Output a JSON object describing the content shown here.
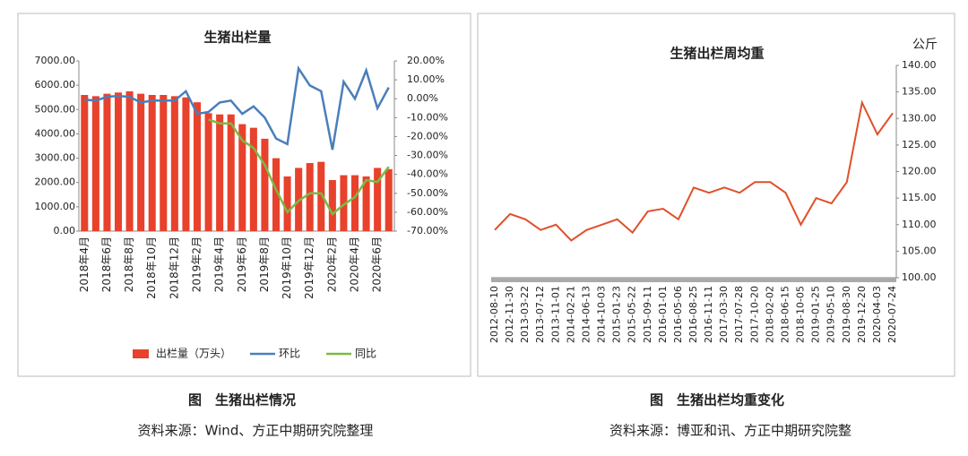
{
  "chart_data": [
    {
      "type": "bar",
      "title": "生猪出栏量",
      "categories": [
        "2018年4月",
        null,
        "2018年6月",
        null,
        "2018年8月",
        null,
        "2018年10月",
        null,
        "2018年12月",
        null,
        "2019年2月",
        null,
        "2019年4月",
        null,
        "2019年6月",
        null,
        "2019年8月",
        null,
        "2019年10月",
        null,
        "2019年12月",
        null,
        "2020年2月",
        null,
        "2020年4月",
        null,
        "2020年6月",
        null
      ],
      "series": [
        {
          "name": "出栏量（万头）",
          "type": "bar",
          "color": "#e8412c",
          "axis": "y",
          "values": [
            5600,
            5550,
            5650,
            5700,
            5750,
            5650,
            5600,
            5600,
            5550,
            5500,
            5300,
            4850,
            4800,
            4800,
            4400,
            4250,
            3800,
            3000,
            2250,
            2600,
            2800,
            2850,
            2100,
            2300,
            2300,
            2250,
            2600,
            2550
          ]
        },
        {
          "name": "环比",
          "type": "line",
          "color": "#4a7ebb",
          "axis": "y2",
          "values": [
            -0.5,
            -1,
            1,
            1.5,
            1,
            -2,
            -1,
            -1,
            -1,
            4,
            -8,
            -7,
            -2,
            -1,
            -8,
            -4,
            -10,
            -21,
            -24,
            16,
            7,
            4,
            -27,
            9,
            0,
            15,
            -5,
            6
          ]
        },
        {
          "name": "同比",
          "type": "line",
          "color": "#7cb944",
          "axis": "y2",
          "values": [
            null,
            null,
            null,
            null,
            null,
            null,
            null,
            null,
            null,
            null,
            null,
            -11,
            -13,
            -13,
            -22,
            -26,
            -35,
            -48,
            -60,
            -54,
            -50,
            -50,
            -61,
            -56,
            -52,
            -43,
            -44,
            -36
          ]
        }
      ],
      "ylim": [
        0,
        7000
      ],
      "yticks": [
        {
          "value": 0,
          "label": "0.00"
        },
        {
          "value": 1000,
          "label": "1000.00"
        },
        {
          "value": 2000,
          "label": "2000.00"
        },
        {
          "value": 3000,
          "label": "3000.00"
        },
        {
          "value": 4000,
          "label": "4000.00"
        },
        {
          "value": 5000,
          "label": "5000.00"
        },
        {
          "value": 6000,
          "label": "6000.00"
        },
        {
          "value": 7000,
          "label": "7000.00"
        }
      ],
      "y2lim": [
        -70,
        20
      ],
      "y2ticks": [
        {
          "value": -70,
          "label": "-70.00%"
        },
        {
          "value": -60,
          "label": "-60.00%"
        },
        {
          "value": -50,
          "label": "-50.00%"
        },
        {
          "value": -40,
          "label": "-40.00%"
        },
        {
          "value": -30,
          "label": "-30.00%"
        },
        {
          "value": -20,
          "label": "-20.00%"
        },
        {
          "value": -10,
          "label": "-10.00%"
        },
        {
          "value": 0,
          "label": "0.00%"
        },
        {
          "value": 10,
          "label": "10.00%"
        },
        {
          "value": 20,
          "label": "20.00%"
        }
      ],
      "legend": "bottom"
    },
    {
      "type": "line",
      "title": "生猪出栏周均重",
      "y_label": "公斤",
      "categories": [
        "2012-08-10",
        "2012-11-30",
        "2013-03-22",
        "2013-07-12",
        "2013-11-01",
        "2014-02-21",
        "2014-06-13",
        "2014-10-03",
        "2015-01-23",
        "2015-05-22",
        "2015-09-11",
        "2016-01-01",
        "2016-05-06",
        "2016-08-25",
        "2016-11-11",
        "2017-03-30",
        "2017-07-28",
        "2017-10-20",
        "2018-02-02",
        "2018-06-15",
        "2018-10-05",
        "2019-01-25",
        "2019-05-10",
        "2019-08-30",
        "2019-12-20",
        "2020-04-03",
        "2020-07-24"
      ],
      "series": [
        {
          "name": "生猪出栏周均重",
          "color": "#e0502a",
          "values": [
            109,
            112,
            111,
            109,
            110,
            107,
            109,
            110,
            111,
            108.5,
            112.5,
            113,
            111,
            117,
            116,
            117,
            116,
            118,
            118,
            116,
            110,
            115,
            114,
            118,
            133,
            127,
            131
          ]
        }
      ],
      "ylim": [
        100,
        140
      ],
      "yticks": [
        {
          "value": 100,
          "label": "100.00"
        },
        {
          "value": 105,
          "label": "105.00"
        },
        {
          "value": 110,
          "label": "110.00"
        },
        {
          "value": 115,
          "label": "115.00"
        },
        {
          "value": 120,
          "label": "120.00"
        },
        {
          "value": 125,
          "label": "125.00"
        },
        {
          "value": 130,
          "label": "130.00"
        },
        {
          "value": 135,
          "label": "135.00"
        },
        {
          "value": 140,
          "label": "140.00"
        }
      ]
    }
  ],
  "captions": [
    {
      "title": "图　生猪出栏情况",
      "source": "资料来源：Wind、方正中期研究院整理"
    },
    {
      "title": "图　生猪出栏均重变化",
      "source": "资料来源：博亚和讯、方正中期研究院整"
    }
  ]
}
